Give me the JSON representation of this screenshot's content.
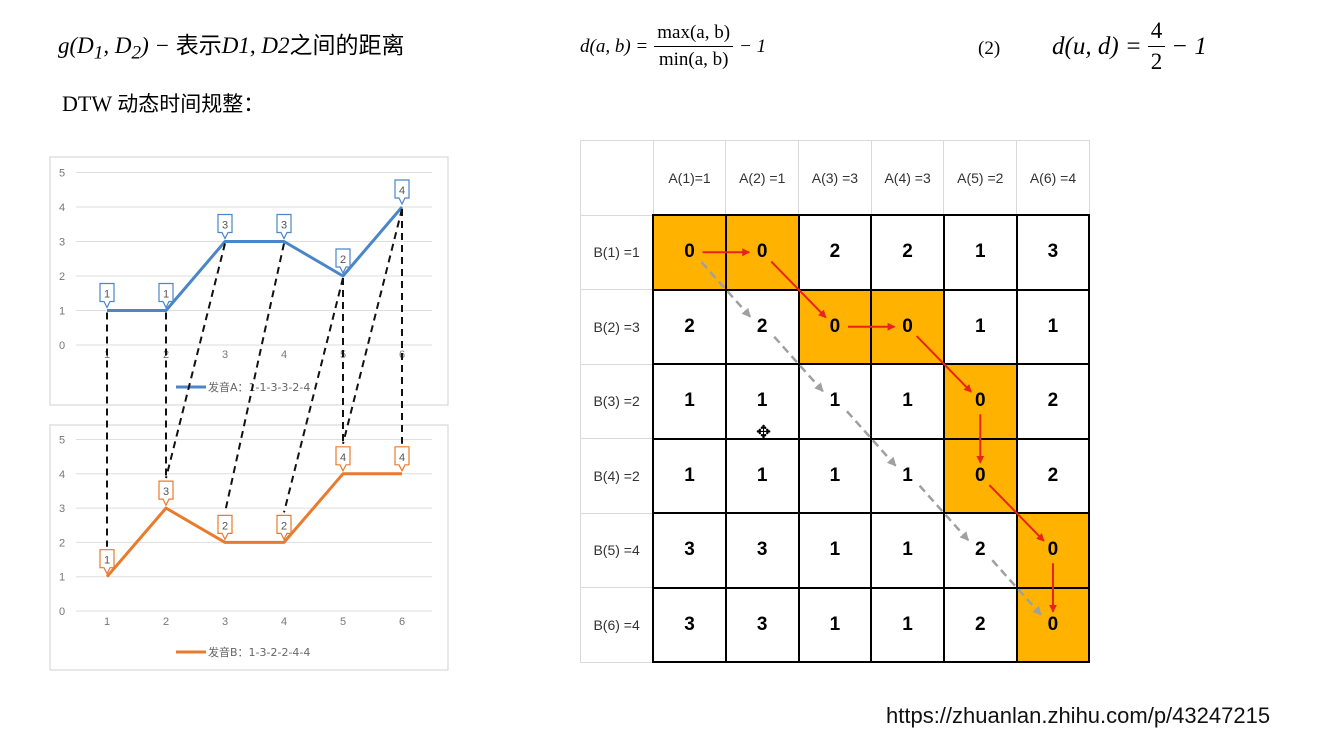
{
  "formulas": {
    "left": {
      "prefix": "g(D",
      "sub1": "1",
      "mid": ", D",
      "sub2": "2",
      "suffix": ") − ",
      "text": "表示",
      "tail": "D1, D2",
      "end": "之间的距离"
    },
    "middle": {
      "lhs": "d(a, b) =",
      "num": "max(a, b)",
      "den": "min(a, b)",
      "rhs": "− 1"
    },
    "eq_number": "(2)",
    "right": {
      "lhs": "d(u, d) =",
      "num": "4",
      "den": "2",
      "rhs": "− 1"
    }
  },
  "dtw_title": {
    "latin": "DTW ",
    "cn": "动态时间规整："
  },
  "chart_data": [
    {
      "type": "line",
      "x": [
        1,
        2,
        3,
        4,
        5,
        6
      ],
      "series": [
        {
          "name": "发音A：1-1-3-3-2-4",
          "values": [
            1,
            1,
            3,
            3,
            2,
            4
          ],
          "color": "#4a86c8"
        }
      ],
      "data_labels": [
        "1",
        "1",
        "3",
        "3",
        "2",
        "4"
      ],
      "ylim": [
        0,
        5
      ],
      "y_ticks": [
        "0",
        "1",
        "2",
        "3",
        "4",
        "5"
      ],
      "x_ticks": [
        "1",
        "2",
        "3",
        "4",
        "5",
        "6"
      ],
      "legend_position": "bottom",
      "grid": true
    },
    {
      "type": "line",
      "x": [
        1,
        2,
        3,
        4,
        5,
        6
      ],
      "series": [
        {
          "name": "发音B：1-3-2-2-4-4",
          "values": [
            1,
            3,
            2,
            2,
            4,
            4
          ],
          "color": "#e87b2e"
        }
      ],
      "data_labels": [
        "1",
        "3",
        "2",
        "2",
        "4",
        "4"
      ],
      "ylim": [
        0,
        5
      ],
      "y_ticks": [
        "0",
        "1",
        "2",
        "3",
        "4",
        "5"
      ],
      "x_ticks": [
        "1",
        "2",
        "3",
        "4",
        "5",
        "6"
      ],
      "legend_position": "bottom",
      "grid": true
    }
  ],
  "alignment_pairs": [
    [
      1,
      1
    ],
    [
      2,
      2
    ],
    [
      3,
      2
    ],
    [
      4,
      3
    ],
    [
      5,
      4
    ],
    [
      5,
      5
    ],
    [
      6,
      6
    ],
    [
      6,
      5
    ]
  ],
  "matrix": {
    "col_headers": [
      "A(1)=1",
      "A(2) =1",
      "A(3) =3",
      "A(4) =3",
      "A(5) =2",
      "A(6) =4"
    ],
    "row_headers": [
      "B(1) =1",
      "B(2) =3",
      "B(3) =2",
      "B(4) =2",
      "B(5) =4",
      "B(6) =4"
    ],
    "values": [
      [
        "0",
        "0",
        "2",
        "2",
        "1",
        "3"
      ],
      [
        "2",
        "2",
        "0",
        "0",
        "1",
        "1"
      ],
      [
        "1",
        "1",
        "1",
        "1",
        "0",
        "2"
      ],
      [
        "1",
        "1",
        "1",
        "1",
        "0",
        "2"
      ],
      [
        "3",
        "3",
        "1",
        "1",
        "2",
        "0"
      ],
      [
        "3",
        "3",
        "1",
        "1",
        "2",
        "0"
      ]
    ],
    "highlighted_cells": [
      [
        0,
        0
      ],
      [
        0,
        1
      ],
      [
        1,
        2
      ],
      [
        1,
        3
      ],
      [
        2,
        4
      ],
      [
        3,
        4
      ],
      [
        4,
        5
      ],
      [
        5,
        5
      ]
    ],
    "highlight_color": "#ffb300",
    "path_color": "#e8231a",
    "diagonal_color": "#a0a0a0"
  },
  "url": "https://zhuanlan.zhihu.com/p/43247215"
}
